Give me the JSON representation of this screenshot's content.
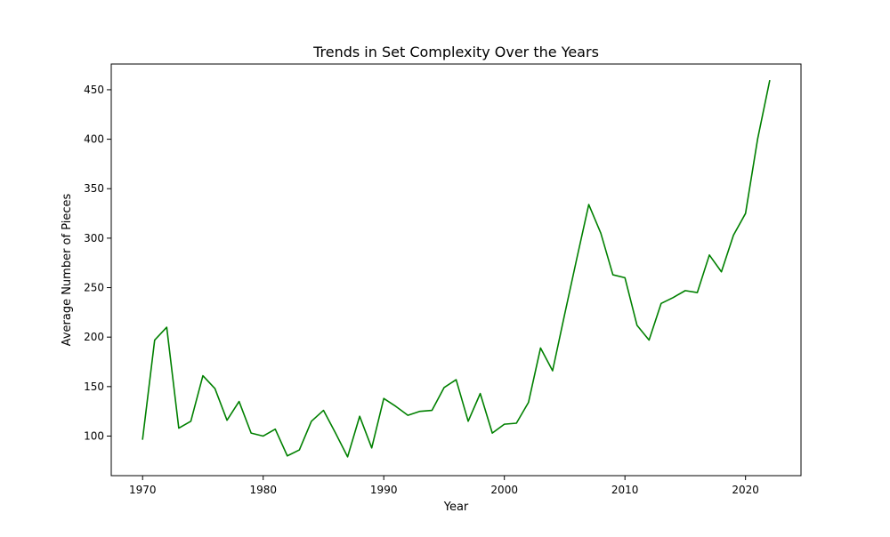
{
  "chart_data": {
    "type": "line",
    "title": "Trends in Set Complexity Over the Years",
    "xlabel": "Year",
    "ylabel": "Average Number of Pieces",
    "xlim": [
      1967.4,
      2024.6
    ],
    "ylim": [
      60,
      476
    ],
    "xticks": [
      1970,
      1980,
      1990,
      2000,
      2010,
      2020
    ],
    "yticks": [
      100,
      150,
      200,
      250,
      300,
      350,
      400,
      450
    ],
    "grid": false,
    "line_color": "#008000",
    "series": [
      {
        "x": [
          1970,
          1971,
          1972,
          1973,
          1974,
          1975,
          1976,
          1977,
          1978,
          1979,
          1980,
          1981,
          1982,
          1983,
          1984,
          1985,
          1986,
          1987,
          1988,
          1989,
          1990,
          1991,
          1992,
          1993,
          1994,
          1995,
          1996,
          1997,
          1998,
          1999,
          2000,
          2001,
          2002,
          2003,
          2004,
          2005,
          2006,
          2007,
          2008,
          2009,
          2010,
          2011,
          2012,
          2013,
          2014,
          2015,
          2016,
          2017,
          2018,
          2019,
          2020,
          2021,
          2022
        ],
        "values": [
          97,
          197,
          210,
          108,
          115,
          161,
          148,
          116,
          135,
          103,
          100,
          107,
          80,
          86,
          115,
          126,
          103,
          79,
          120,
          88,
          138,
          130,
          121,
          125,
          126,
          149,
          157,
          115,
          143,
          103,
          112,
          113,
          134,
          189,
          166,
          223,
          279,
          334,
          305,
          263,
          260,
          212,
          197,
          234,
          240,
          247,
          245,
          283,
          266,
          303,
          325,
          400,
          459
        ]
      }
    ]
  }
}
